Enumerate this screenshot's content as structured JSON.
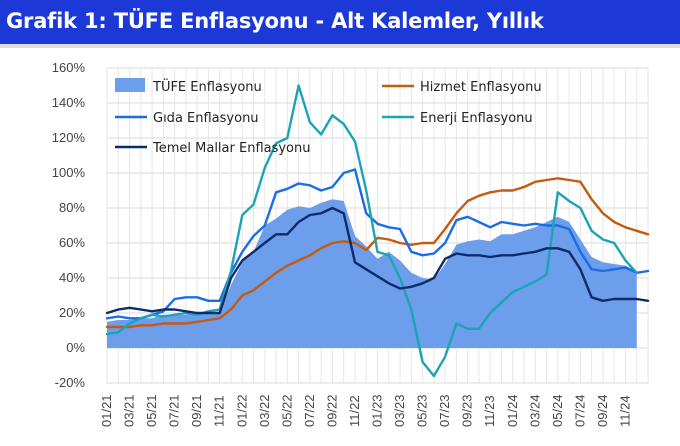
{
  "header": {
    "title": "Grafik 1: TÜFE Enflasyonu - Alt Kalemler, Yıllık"
  },
  "chart_data": {
    "type": "area",
    "title": "Grafik 1: TÜFE Enflasyonu - Alt Kalemler, Yıllık",
    "xlabel": "",
    "ylabel": "",
    "ylim": [
      -20,
      160
    ],
    "yticks": [
      -20,
      0,
      20,
      40,
      60,
      80,
      100,
      120,
      140,
      160
    ],
    "ytick_labels": [
      "-20%",
      "0%",
      "20%",
      "40%",
      "60%",
      "80%",
      "100%",
      "120%",
      "140%",
      "160%"
    ],
    "grid": true,
    "legend_position": "top",
    "x_start": "2021-01",
    "xtick_labels": [
      "01/21",
      "03/21",
      "05/21",
      "07/21",
      "09/21",
      "11/21",
      "01/22",
      "03/22",
      "05/22",
      "07/22",
      "09/22",
      "11/22",
      "01/23",
      "03/23",
      "05/23",
      "07/23",
      "09/23",
      "11/23",
      "01/24",
      "03/24",
      "05/24",
      "07/24",
      "09/24",
      "11/24"
    ],
    "series": [
      {
        "name": "TÜFE Enflasyonu",
        "kind": "area",
        "color": "#6d9eeb",
        "values": [
          15,
          16,
          16,
          17,
          17,
          19,
          19,
          19,
          20,
          20,
          21,
          36,
          49,
          55,
          70,
          74,
          79,
          81,
          80,
          83,
          85,
          84,
          64,
          58,
          51,
          55,
          50,
          43,
          40,
          39,
          48,
          59,
          61,
          62,
          61,
          65,
          65,
          67,
          69,
          72,
          75,
          72,
          62,
          52,
          49,
          48,
          47,
          44
        ]
      },
      {
        "name": "Hizmet Enflasyonu",
        "kind": "line",
        "color": "#c55a11",
        "values": [
          12,
          12,
          12,
          13,
          13,
          14,
          14,
          14,
          15,
          16,
          17,
          22,
          30,
          33,
          38,
          43,
          47,
          50,
          53,
          57,
          60,
          61,
          60,
          56,
          63,
          62,
          60,
          59,
          60,
          60,
          68,
          77,
          84,
          87,
          89,
          90,
          90,
          92,
          95,
          96,
          97,
          96,
          95,
          85,
          77,
          72,
          69,
          67,
          65
        ]
      },
      {
        "name": "Gıda Enflasyonu",
        "kind": "line",
        "color": "#1a6ce8",
        "values": [
          17,
          18,
          17,
          17,
          19,
          21,
          28,
          29,
          29,
          27,
          27,
          43,
          55,
          64,
          70,
          89,
          91,
          94,
          93,
          90,
          92,
          100,
          102,
          77,
          71,
          69,
          68,
          55,
          53,
          54,
          60,
          73,
          75,
          72,
          69,
          72,
          71,
          70,
          71,
          70,
          70,
          68,
          55,
          45,
          44,
          45,
          46,
          43,
          44
        ]
      },
      {
        "name": "Enerji Enflasyonu",
        "kind": "line",
        "color": "#1ca3b5",
        "values": [
          8,
          9,
          14,
          17,
          19,
          18,
          19,
          20,
          19,
          21,
          22,
          44,
          76,
          82,
          103,
          117,
          120,
          150,
          129,
          122,
          133,
          128,
          118,
          90,
          55,
          53,
          40,
          22,
          -8,
          -16,
          -5,
          14,
          11,
          11,
          20,
          26,
          32,
          35,
          38,
          42,
          89,
          84,
          80,
          67,
          62,
          60,
          50,
          43
        ]
      },
      {
        "name": "Temel Mallar Enflasyonu",
        "kind": "line",
        "color": "#0d2b6b",
        "values": [
          20,
          22,
          23,
          22,
          21,
          22,
          22,
          21,
          20,
          20,
          20,
          40,
          50,
          55,
          60,
          65,
          65,
          72,
          76,
          77,
          80,
          77,
          49,
          45,
          41,
          37,
          34,
          35,
          37,
          40,
          51,
          54,
          53,
          53,
          52,
          53,
          53,
          54,
          55,
          57,
          57,
          55,
          45,
          29,
          27,
          28,
          28,
          28,
          27
        ]
      }
    ]
  }
}
